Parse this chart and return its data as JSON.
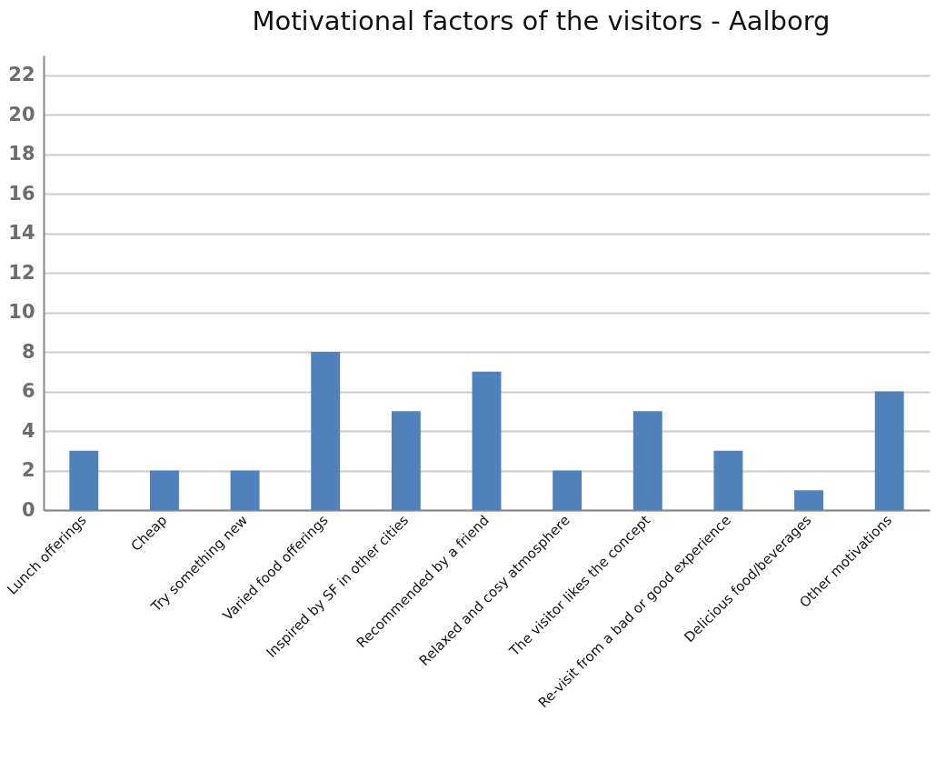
{
  "chart_data": {
    "type": "bar",
    "title": "Motivational factors of the visitors - Aalborg",
    "categories": [
      "Lunch offerings",
      "Cheap",
      "Try something new",
      "Varied food offerings",
      "Inspired by SF in other cities",
      "Recommended by a friend",
      "Relaxed and cosy atmosphere",
      "The visitor likes the concept",
      "Re-visit from a bad or good experience",
      "Delicious food/beverages",
      "Other motivations"
    ],
    "values": [
      3,
      2,
      2,
      8,
      5,
      7,
      2,
      5,
      3,
      1,
      6
    ],
    "color": "#4f81bd",
    "ylim": [
      0,
      23
    ],
    "yticks": [
      0,
      2,
      4,
      6,
      8,
      10,
      12,
      14,
      16,
      18,
      20,
      22
    ],
    "grid": "y"
  }
}
